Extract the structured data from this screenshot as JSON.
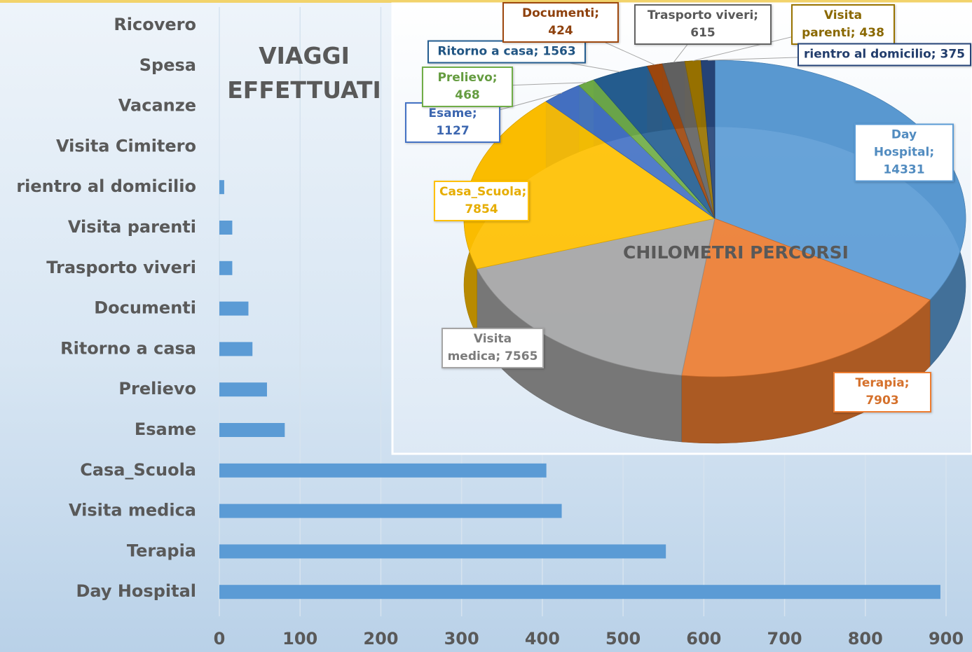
{
  "chart_data": [
    {
      "type": "bar",
      "orientation": "horizontal",
      "title": "VIAGGI EFFETTUATI",
      "categories": [
        "Ricovero",
        "Spesa",
        "Vacanze",
        "Visita Cimitero",
        "rientro al domicilio",
        "Visita parenti",
        "Trasporto viveri",
        "Documenti",
        "Ritorno a casa",
        "Prelievo",
        "Esame",
        "Casa_Scuola",
        "Visita medica",
        "Terapia",
        "Day Hospital"
      ],
      "values": [
        0,
        0,
        0,
        0,
        6,
        16,
        16,
        36,
        41,
        59,
        81,
        405,
        424,
        553,
        893
      ],
      "color": "#5b9bd5",
      "xlim": [
        0,
        900
      ],
      "xticks": [
        0,
        100,
        200,
        300,
        400,
        500,
        600,
        700,
        800,
        900
      ],
      "grid": true
    },
    {
      "type": "pie",
      "title": "CHILOMETRI PERCORSI",
      "categories": [
        "Day Hospital",
        "Terapia",
        "Visita medica",
        "Casa_Scuola",
        "Esame",
        "Prelievo",
        "Ritorno a casa",
        "Documenti",
        "Trasporto viveri",
        "Visita parenti",
        "rientro al domicilio"
      ],
      "values": [
        14331,
        7903,
        7565,
        7854,
        1127,
        468,
        1563,
        424,
        615,
        438,
        375
      ],
      "value_labels": [
        "Day Hospital; 14331",
        "Terapia; 7903",
        "Visita medica; 7565",
        "Casa_Scuola; 7854",
        "Esame; 1127",
        "Prelievo; 468",
        "Ritorno a casa; 1563",
        "Documenti; 424",
        "Trasporto viveri; 615",
        "Visita parenti; 438",
        "rientro al domicilio; 375"
      ],
      "colors": [
        "#5b9bd5",
        "#ed7d31",
        "#a5a5a5",
        "#ffc000",
        "#4472c4",
        "#70ad47",
        "#255e91",
        "#9e480e",
        "#636363",
        "#997300",
        "#264478"
      ]
    }
  ]
}
